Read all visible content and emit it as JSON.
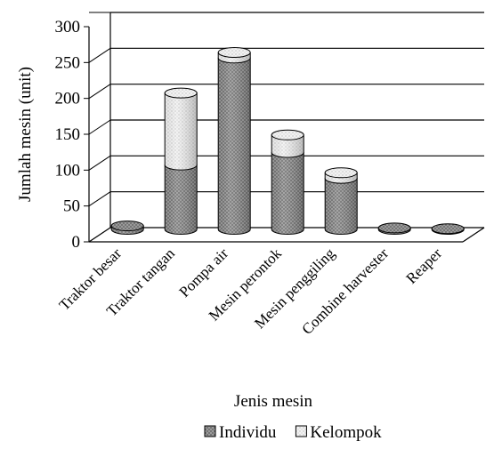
{
  "chart_data": {
    "type": "bar",
    "stacked": true,
    "three_d": true,
    "xlabel": "Jenis mesin",
    "ylabel": "Jumlah mesin (unit)",
    "ylim": [
      0,
      300
    ],
    "yticks": [
      0,
      50,
      100,
      150,
      200,
      250,
      300
    ],
    "grid": true,
    "legend_position": "bottom",
    "categories": [
      "Traktor besar",
      "Traktor tangan",
      "Pompa air",
      "Mesin perontok",
      "Mesin penggiling",
      "Combine harvester",
      "Reaper"
    ],
    "series": [
      {
        "name": "Individu",
        "values": [
          5,
          92,
          245,
          110,
          73,
          2,
          1
        ],
        "color": "#8c8c8c",
        "pattern": "dense-dots"
      },
      {
        "name": "Kelompok",
        "values": [
          0,
          103,
          8,
          25,
          8,
          0,
          0
        ],
        "color": "#e6e6e6",
        "pattern": "sparse-dots"
      }
    ]
  }
}
